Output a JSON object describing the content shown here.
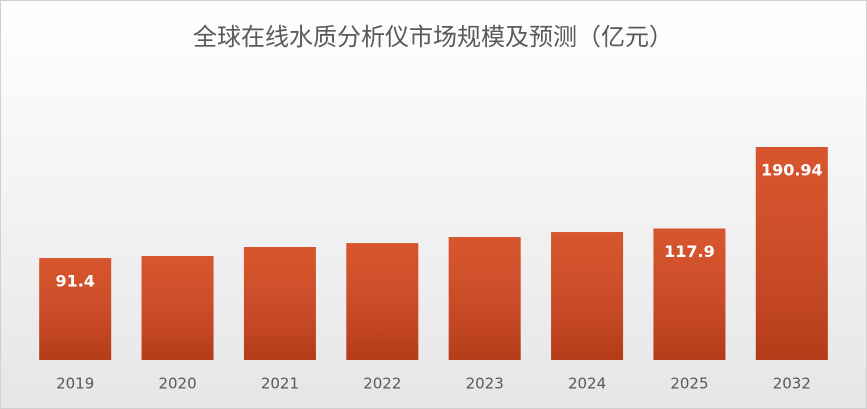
{
  "chart_data": {
    "type": "bar",
    "title": "全球在线水质分析仪市场规模及预测（亿元）",
    "categories": [
      "2019",
      "2020",
      "2021",
      "2022",
      "2023",
      "2024",
      "2025",
      "2032"
    ],
    "values": [
      91.4,
      93.2,
      101.3,
      104.8,
      110.2,
      114.7,
      117.9,
      190.94
    ],
    "value_labels": [
      "91.4",
      null,
      null,
      null,
      null,
      null,
      "117.9",
      "190.94"
    ],
    "color": "#d4461c"
  }
}
